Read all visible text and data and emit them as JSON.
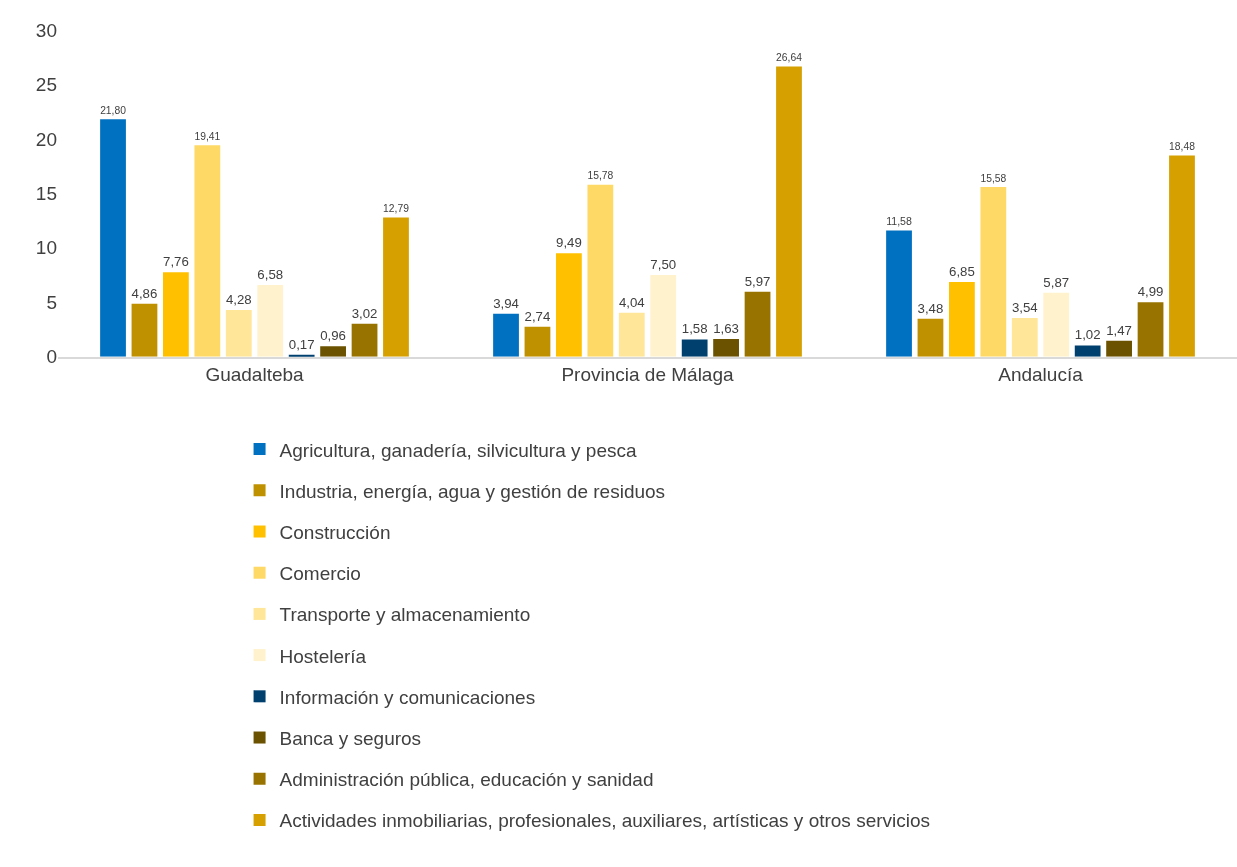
{
  "chart_data": {
    "type": "bar",
    "categories": [
      "Guadalteba",
      "Provincia de Málaga",
      "Andalucía"
    ],
    "ylim": [
      0,
      30
    ],
    "yticks": [
      0,
      5,
      10,
      15,
      20,
      25,
      30
    ],
    "grid": false,
    "legend": "bottom",
    "series": [
      {
        "name": "Agricultura, ganadería, silvicultura y pesca",
        "color": "#0070c0",
        "values": [
          21.8,
          3.94,
          11.58
        ],
        "value_labels": [
          "21,80",
          "3,94",
          "11,58"
        ]
      },
      {
        "name": "Industria, energía, agua y gestión de residuos",
        "color": "#bf9000",
        "values": [
          4.86,
          2.74,
          3.48
        ],
        "value_labels": [
          "4,86",
          "2,74",
          "3,48"
        ]
      },
      {
        "name": "Construcción",
        "color": "#ffc000",
        "values": [
          7.76,
          9.49,
          6.85
        ],
        "value_labels": [
          "7,76",
          "9,49",
          "6,85"
        ]
      },
      {
        "name": "Comercio",
        "color": "#ffd966",
        "values": [
          19.41,
          15.78,
          15.58
        ],
        "value_labels": [
          "19,41",
          "15,78",
          "15,58"
        ]
      },
      {
        "name": "Transporte y almacenamiento",
        "color": "#ffe699",
        "values": [
          4.28,
          4.04,
          3.54
        ],
        "value_labels": [
          "4,28",
          "4,04",
          "3,54"
        ]
      },
      {
        "name": "Hostelería",
        "color": "#fff2cc",
        "values": [
          6.58,
          7.5,
          5.87
        ],
        "value_labels": [
          "6,58",
          "7,50",
          "5,87"
        ]
      },
      {
        "name": "Información y comunicaciones",
        "color": "#00406f",
        "values": [
          0.17,
          1.58,
          1.02
        ],
        "value_labels": [
          "0,17",
          "1,58",
          "1,02"
        ]
      },
      {
        "name": "Banca y seguros",
        "color": "#6b5200",
        "values": [
          0.96,
          1.63,
          1.47
        ],
        "value_labels": [
          "0,96",
          "1,63",
          "1,47"
        ]
      },
      {
        "name": "Administración pública, educación y sanidad",
        "color": "#997300",
        "values": [
          3.02,
          5.97,
          4.99
        ],
        "value_labels": [
          "3,02",
          "5,97",
          "4,99"
        ]
      },
      {
        "name": "Actividades inmobiliarias, profesionales, auxiliares, artísticas y otros servicios",
        "color": "#d6a000",
        "values": [
          12.79,
          26.64,
          18.48
        ],
        "value_labels": [
          "12,79",
          "26,64",
          "18,48"
        ]
      }
    ]
  }
}
